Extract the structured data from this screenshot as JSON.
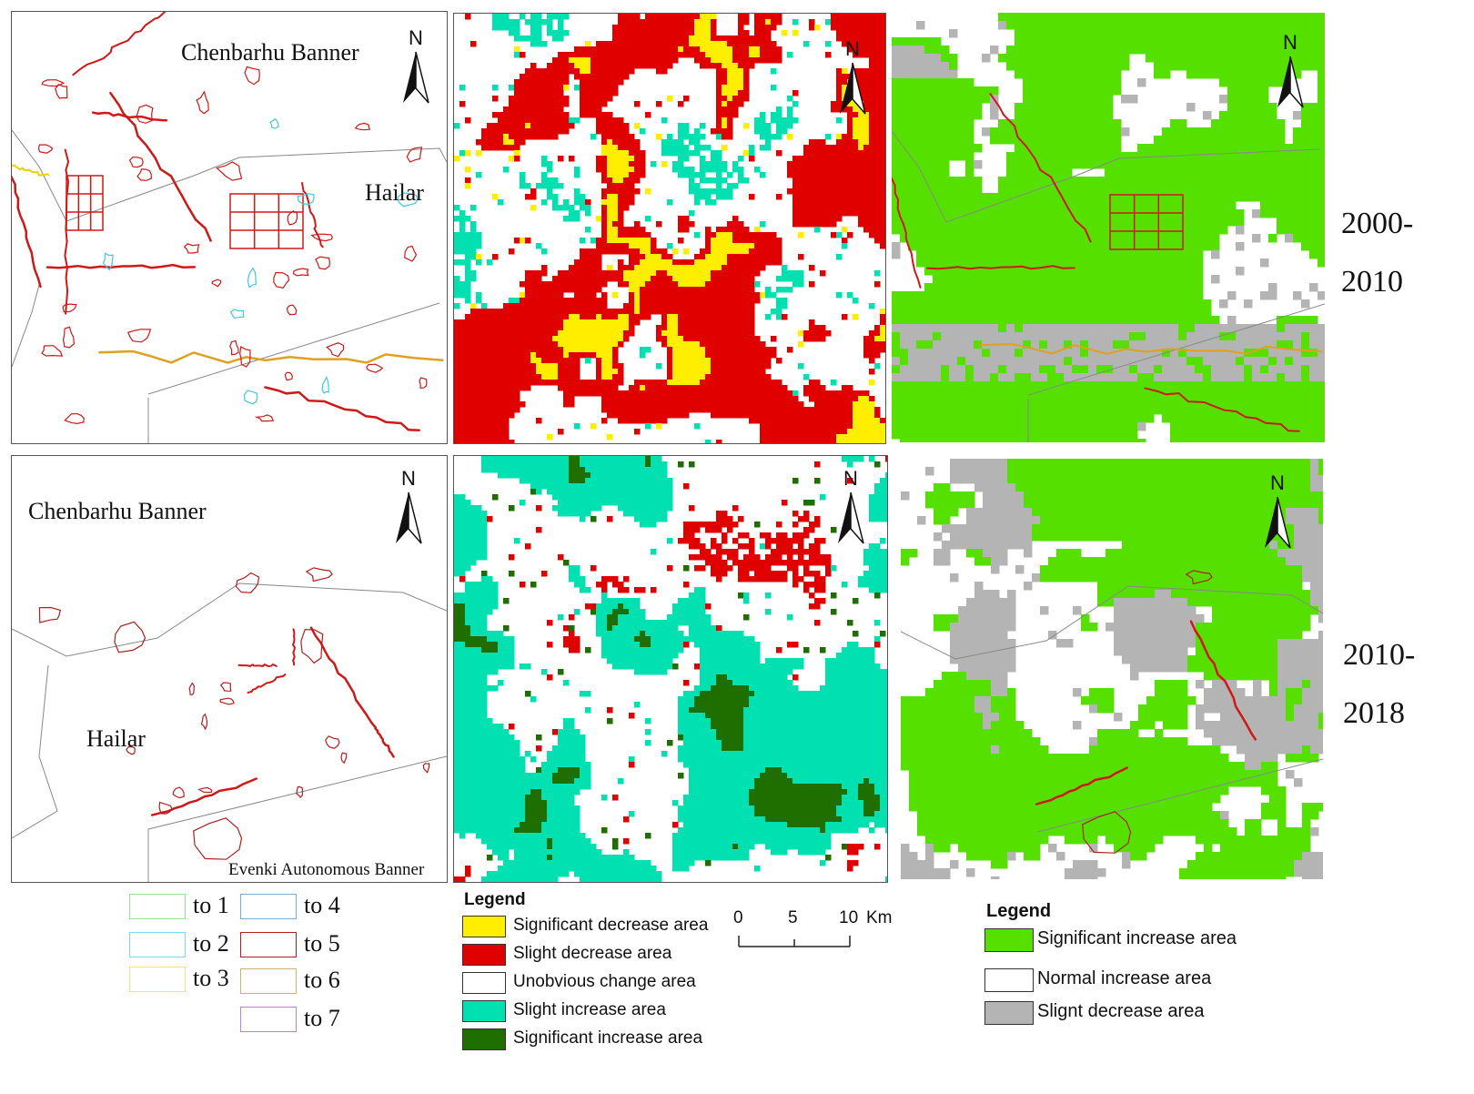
{
  "colors": {
    "red": "#e00000",
    "yellow": "#ffee00",
    "cyan": "#00e0b0",
    "dark_green": "#1f6e00",
    "bright_green": "#55e000",
    "gray": "#b4b4b4",
    "orange": "#e0a020",
    "light_green": "#99e099",
    "sky": "#80d8f0",
    "pale_yellow": "#f5e27a",
    "steel_blue": "#7aaed8",
    "dark_red": "#b02020",
    "tan": "#d2b070",
    "purple": "#c080d8",
    "boundary": "#888888"
  },
  "north_label": "N",
  "place_names": {
    "chenbarhu": "Chenbarhu Banner",
    "hailar": "Hailar",
    "evenki": "Evenki Autonomous Banner"
  },
  "periods": [
    {
      "line1": "2000-",
      "line2": "2010"
    },
    {
      "line1": "2010-",
      "line2": "2018"
    }
  ],
  "conversion_legend": [
    {
      "label": "to 1",
      "color": "#99e099"
    },
    {
      "label": "to 2",
      "color": "#80d8f0"
    },
    {
      "label": "to 3",
      "color": "#f5e27a"
    },
    {
      "label": "to 4",
      "color": "#7aaed8"
    },
    {
      "label": "to 5",
      "color": "#b02020"
    },
    {
      "label": "to 6",
      "color": "#d2b070"
    },
    {
      "label": "to 7",
      "color": "#c080d8"
    }
  ],
  "change_legend": {
    "title": "Legend",
    "items": [
      {
        "label": "Significant decrease area",
        "color": "#ffee00"
      },
      {
        "label": "Slight decrease area",
        "color": "#e00000"
      },
      {
        "label": "Unobvious change area",
        "color": "#ffffff"
      },
      {
        "label": "Slight increase area",
        "color": "#00e0b0"
      },
      {
        "label": "Significant increase area",
        "color": "#1f6e00"
      }
    ]
  },
  "scale_bar": {
    "ticks": [
      "0",
      "5",
      "10"
    ],
    "unit": "Km"
  },
  "trend_legend": {
    "title": "Legend",
    "items": [
      {
        "label": "Significant increase area",
        "color": "#55e000"
      },
      {
        "label": "Normal increase area",
        "color": "#ffffff"
      },
      {
        "label": "Slignt decrease area",
        "color": "#b4b4b4"
      }
    ]
  }
}
